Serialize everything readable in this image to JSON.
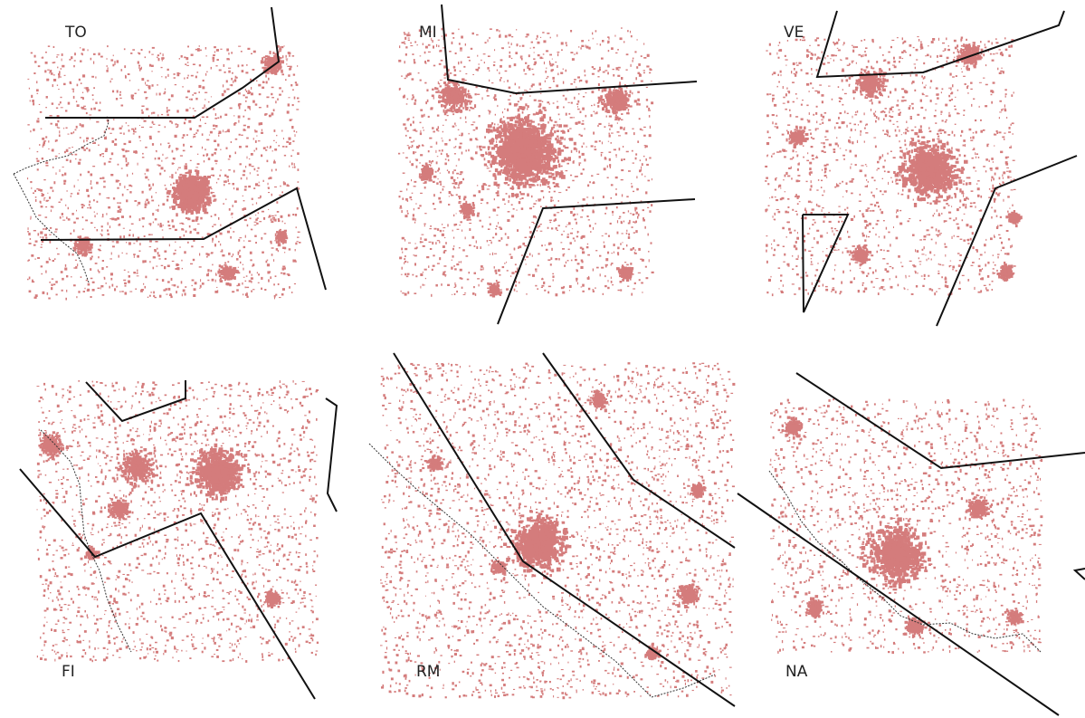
{
  "figure": {
    "urban_color": "#d47c7c",
    "boundary_color": "#111111",
    "background": "#ffffff"
  },
  "panels": [
    {
      "id": "to",
      "label": "TO"
    },
    {
      "id": "mi",
      "label": "MI"
    },
    {
      "id": "ve",
      "label": "VE"
    },
    {
      "id": "fi",
      "label": "FI"
    },
    {
      "id": "rm",
      "label": "RM"
    },
    {
      "id": "na",
      "label": "NA"
    }
  ]
}
